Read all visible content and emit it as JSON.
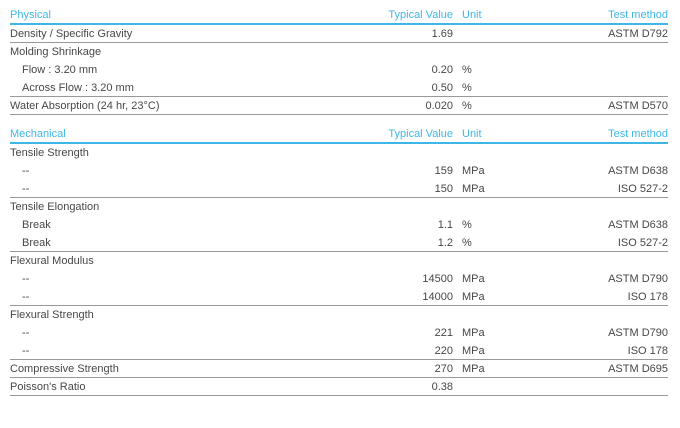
{
  "table": {
    "accent_color": "#3eb7e7",
    "text_color": "#474747",
    "rule_color": "#999999",
    "columns": {
      "value": "Typical Value",
      "unit": "Unit",
      "method": "Test method"
    },
    "sections": [
      {
        "title": "Physical",
        "rows": [
          {
            "name": "Density / Specific Gravity",
            "value": "1.69",
            "unit": "",
            "method": "ASTM D792",
            "indent": false,
            "rule_below": true
          },
          {
            "name": "Molding Shrinkage",
            "value": "",
            "unit": "",
            "method": "",
            "indent": false,
            "rule_below": false
          },
          {
            "name": "Flow : 3.20 mm",
            "value": "0.20",
            "unit": "%",
            "method": "",
            "indent": true,
            "rule_below": false
          },
          {
            "name": "Across Flow : 3.20 mm",
            "value": "0.50",
            "unit": "%",
            "method": "",
            "indent": true,
            "rule_below": true
          },
          {
            "name": "Water Absorption (24 hr, 23°C)",
            "value": "0.020",
            "unit": "%",
            "method": "ASTM D570",
            "indent": false,
            "rule_below": true
          }
        ]
      },
      {
        "title": "Mechanical",
        "rows": [
          {
            "name": "Tensile Strength",
            "value": "",
            "unit": "",
            "method": "",
            "indent": false,
            "rule_below": false
          },
          {
            "name": "--",
            "value": "159",
            "unit": "MPa",
            "method": "ASTM D638",
            "indent": true,
            "rule_below": false
          },
          {
            "name": "--",
            "value": "150",
            "unit": "MPa",
            "method": "ISO 527-2",
            "indent": true,
            "rule_below": true
          },
          {
            "name": "Tensile Elongation",
            "value": "",
            "unit": "",
            "method": "",
            "indent": false,
            "rule_below": false
          },
          {
            "name": "Break",
            "value": "1.1",
            "unit": "%",
            "method": "ASTM D638",
            "indent": true,
            "rule_below": false
          },
          {
            "name": "Break",
            "value": "1.2",
            "unit": "%",
            "method": "ISO 527-2",
            "indent": true,
            "rule_below": true
          },
          {
            "name": "Flexural Modulus",
            "value": "",
            "unit": "",
            "method": "",
            "indent": false,
            "rule_below": false
          },
          {
            "name": "--",
            "value": "14500",
            "unit": "MPa",
            "method": "ASTM D790",
            "indent": true,
            "rule_below": false
          },
          {
            "name": "--",
            "value": "14000",
            "unit": "MPa",
            "method": "ISO 178",
            "indent": true,
            "rule_below": true
          },
          {
            "name": "Flexural Strength",
            "value": "",
            "unit": "",
            "method": "",
            "indent": false,
            "rule_below": false
          },
          {
            "name": "--",
            "value": "221",
            "unit": "MPa",
            "method": "ASTM D790",
            "indent": true,
            "rule_below": false
          },
          {
            "name": "--",
            "value": "220",
            "unit": "MPa",
            "method": "ISO 178",
            "indent": true,
            "rule_below": true
          },
          {
            "name": "Compressive Strength",
            "value": "270",
            "unit": "MPa",
            "method": "ASTM D695",
            "indent": false,
            "rule_below": true
          },
          {
            "name": "Poisson's Ratio",
            "value": "0.38",
            "unit": "",
            "method": "",
            "indent": false,
            "rule_below": true
          }
        ]
      }
    ]
  }
}
